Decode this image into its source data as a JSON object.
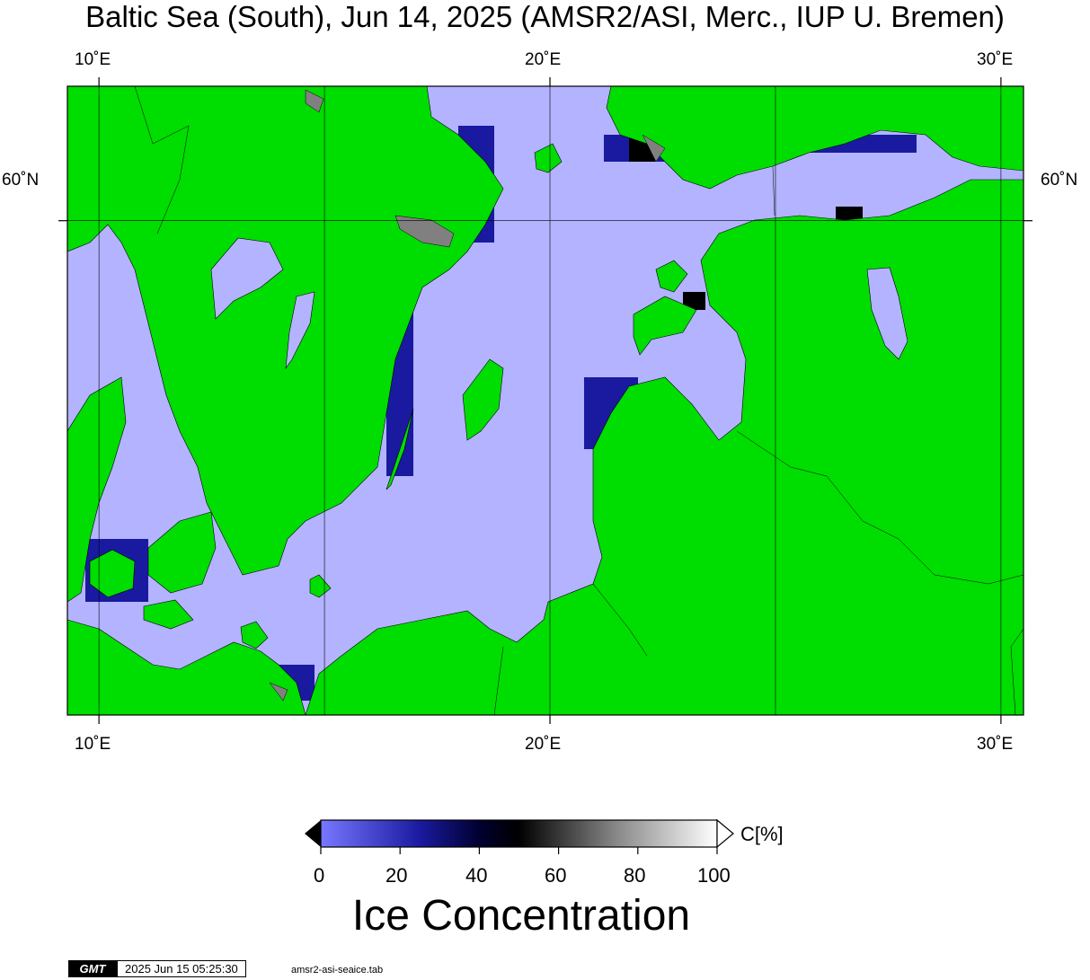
{
  "header": {
    "title": "Baltic Sea (South), Jun 14, 2025 (AMSR2/ASI, Merc., IUP U. Bremen)"
  },
  "map": {
    "projection": "Mercator",
    "lon_range": [
      9.3,
      30.5
    ],
    "lat_range": [
      53.4,
      61.6
    ],
    "gridlines": {
      "lon": [
        10,
        15,
        20,
        25,
        30
      ],
      "lat": [
        60
      ]
    },
    "colors": {
      "land": "#00dd00",
      "water_0pct": "#b3b3ff",
      "masked": "#808080"
    }
  },
  "axes": {
    "top_ticks": [
      "10˚E",
      "20˚E",
      "30˚E"
    ],
    "bottom_ticks": [
      "10˚E",
      "20˚E",
      "30˚E"
    ],
    "left_ticks": [
      "60˚N"
    ],
    "right_ticks": [
      "60˚N"
    ]
  },
  "colorbar": {
    "unit": "C[%]",
    "ticks": [
      "0",
      "20",
      "40",
      "60",
      "80",
      "100"
    ],
    "title": "Ice Concentration",
    "range": [
      0,
      100
    ]
  },
  "footer": {
    "logo": "GMT",
    "timestamp": "2025 Jun 15 05:25:30",
    "command": "amsr2-asi-seaice.tab"
  }
}
